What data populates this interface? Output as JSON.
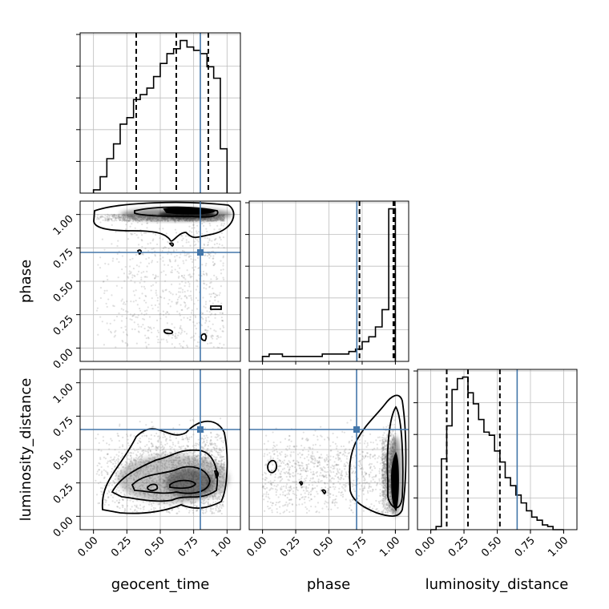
{
  "chart_data": {
    "type": "corner",
    "parameters": [
      {
        "key": "geocent_time",
        "label": "geocent_time",
        "range": [
          0.0,
          1.0
        ]
      },
      {
        "key": "phase",
        "label": "phase",
        "range": [
          0.0,
          1.0
        ]
      },
      {
        "key": "luminosity_distance",
        "label": "luminosity_distance",
        "range": [
          0.0,
          1.0
        ]
      }
    ],
    "tick_labels": [
      "0.00",
      "0.25",
      "0.50",
      "0.75",
      "1.00"
    ],
    "ticks": [
      0.0,
      0.25,
      0.5,
      0.75,
      1.0
    ],
    "truths": {
      "geocent_time": 0.8,
      "phase": 0.71,
      "luminosity_distance": 0.65
    },
    "truth_color": "#4477aa",
    "hist_color": "#000000",
    "grid": true,
    "histograms": [
      {
        "parameter": "geocent_time",
        "bin_edges": [
          0.0,
          0.05,
          0.1,
          0.15,
          0.2,
          0.25,
          0.3,
          0.35,
          0.4,
          0.45,
          0.5,
          0.55,
          0.6,
          0.65,
          0.7,
          0.75,
          0.8,
          0.85,
          0.9,
          0.95,
          1.0
        ],
        "counts": [
          2,
          10,
          21,
          30,
          42,
          46,
          57,
          60,
          64,
          71,
          79,
          85,
          88,
          93,
          89,
          87,
          85,
          77,
          70,
          27
        ],
        "quantiles": [
          0.32,
          0.62,
          0.86
        ]
      },
      {
        "parameter": "phase",
        "bin_edges": [
          0.0,
          0.05,
          0.1,
          0.15,
          0.2,
          0.25,
          0.3,
          0.35,
          0.4,
          0.45,
          0.5,
          0.55,
          0.6,
          0.65,
          0.7,
          0.75,
          0.8,
          0.85,
          0.9,
          0.95,
          1.0
        ],
        "counts": [
          2,
          3,
          3,
          2,
          2,
          2,
          2,
          2,
          2,
          3,
          3,
          3,
          3,
          4,
          5,
          8,
          10,
          14,
          21,
          62
        ],
        "quantiles": [
          0.73,
          0.985,
          0.995
        ]
      },
      {
        "parameter": "luminosity_distance",
        "bin_edges": [
          0.0,
          0.04,
          0.08,
          0.12,
          0.16,
          0.2,
          0.24,
          0.28,
          0.32,
          0.36,
          0.4,
          0.44,
          0.48,
          0.52,
          0.56,
          0.6,
          0.64,
          0.68,
          0.72,
          0.76,
          0.8,
          0.84,
          0.88,
          0.92,
          0.96,
          1.0
        ],
        "counts": [
          0,
          2,
          45,
          66,
          89,
          96,
          97,
          87,
          80,
          70,
          62,
          60,
          50,
          43,
          33,
          28,
          22,
          17,
          12,
          8,
          6,
          3,
          2,
          0,
          0
        ],
        "quantiles": [
          0.12,
          0.28,
          0.52
        ]
      }
    ],
    "scatter_panels": [
      {
        "x": "geocent_time",
        "y": "phase"
      },
      {
        "x": "geocent_time",
        "y": "luminosity_distance"
      },
      {
        "x": "phase",
        "y": "luminosity_distance"
      }
    ]
  }
}
